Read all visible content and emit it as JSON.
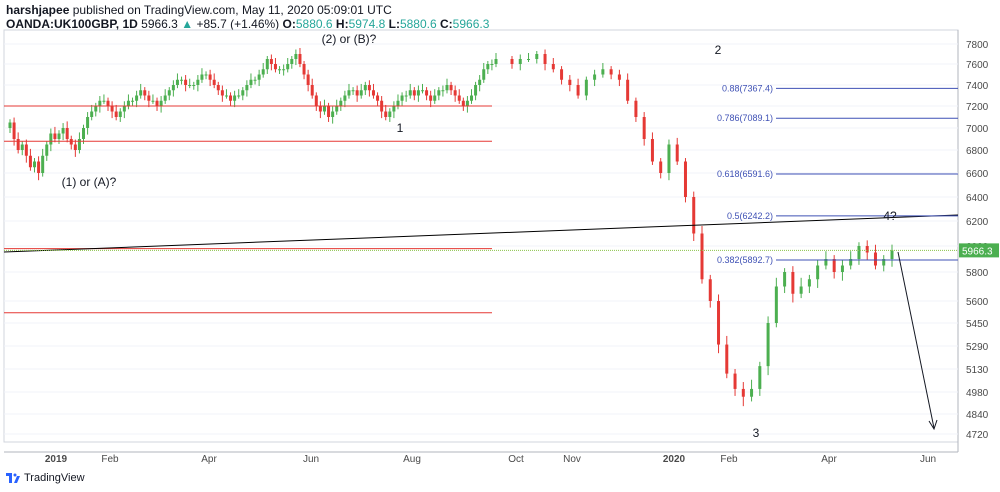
{
  "header": {
    "author": "harshjapee",
    "published_text": "published on TradingView.com, May 11, 2020 05:09:01 UTC",
    "symbol": "OANDA:UK100GBP, 1D",
    "last": "5966.3",
    "change": "+85.7 (+1.46%)",
    "o_label": "O:",
    "o_value": "5880.6",
    "h_label": "H:",
    "h_value": "5974.8",
    "l_label": "L:",
    "l_value": "5880.6",
    "c_label": "C:",
    "c_value": "5966.3"
  },
  "footer": {
    "brand": "TradingView"
  },
  "colors": {
    "up": "#26a69a",
    "up_candle": "#4caf50",
    "down_candle": "#e53935",
    "red_line": "#e53935",
    "fib_line": "#3f51b5",
    "trend_line": "#000000",
    "price_line": "#8bc34a",
    "grid": "#f0f3fa",
    "axis_text": "#4a4a4a"
  },
  "chart_data": {
    "type": "candlestick",
    "y_ticks": [
      7800,
      7600,
      7400,
      7200,
      7000,
      6800,
      6600,
      6400,
      6200,
      6000,
      5800,
      5600,
      5450,
      5290,
      5130,
      4980,
      4840,
      4720
    ],
    "x_ticks": [
      "2019",
      "Feb",
      "Apr",
      "Jun",
      "Aug",
      "Oct",
      "Nov",
      "2020",
      "Feb",
      "Apr",
      "Jun"
    ],
    "current_price_label": "5966.3",
    "fib_levels": [
      {
        "label": "0.88(7367.4)",
        "value": 7367.4
      },
      {
        "label": "0.786(7089.1)",
        "value": 7089.1
      },
      {
        "label": "0.618(6591.6)",
        "value": 6591.6
      },
      {
        "label": "0.5(6242.2)",
        "value": 6242.2
      },
      {
        "label": "0.382(5892.7)",
        "value": 5892.7
      }
    ],
    "horizontal_levels": [
      7200,
      6880,
      5980,
      5520
    ],
    "annotations": [
      {
        "text": "(2) or (B)?"
      },
      {
        "text": "2"
      },
      {
        "text": "1"
      },
      {
        "text": "(1) or (A)?"
      },
      {
        "text": "4?"
      },
      {
        "text": "3"
      }
    ],
    "closes": [
      7050,
      6900,
      6800,
      6850,
      6750,
      6650,
      6700,
      6600,
      6750,
      6850,
      6950,
      6900,
      6950,
      7000,
      6900,
      6850,
      6800,
      6900,
      7000,
      7100,
      7150,
      7200,
      7250,
      7250,
      7200,
      7150,
      7100,
      7150,
      7200,
      7250,
      7250,
      7300,
      7350,
      7300,
      7250,
      7250,
      7200,
      7250,
      7300,
      7350,
      7400,
      7450,
      7450,
      7400,
      7400,
      7400,
      7450,
      7500,
      7500,
      7450,
      7400,
      7350,
      7300,
      7300,
      7250,
      7300,
      7300,
      7350,
      7400,
      7450,
      7450,
      7500,
      7550,
      7650,
      7600,
      7550,
      7550,
      7550,
      7600,
      7650,
      7700,
      7600,
      7500,
      7400,
      7300,
      7200,
      7150,
      7200,
      7100,
      7150,
      7200,
      7250,
      7300,
      7350,
      7350,
      7300,
      7350,
      7400,
      7350,
      7300,
      7250,
      7150,
      7100,
      7150,
      7200,
      7250,
      7300,
      7300,
      7350,
      7300,
      7350,
      7350,
      7300,
      7250,
      7300,
      7350,
      7350,
      7400,
      7350,
      7300,
      7250,
      7200,
      7250,
      7300,
      7400,
      7450,
      7550,
      7600,
      7600,
      7650,
      7600,
      7650,
      7650,
      7700,
      7600,
      7550,
      7450,
      7400,
      7300,
      7450,
      7500,
      7550,
      7500,
      7450,
      7250,
      7100,
      6900,
      6700,
      6600,
      6850,
      6700,
      6400,
      6100,
      5750,
      5600,
      5300,
      5100,
      5000,
      4950,
      5000,
      5150,
      5450,
      5700,
      5800,
      5650,
      5700,
      5750,
      5850,
      5900,
      5800,
      5850,
      5900,
      6000,
      5950,
      5850,
      5900,
      5966
    ]
  }
}
